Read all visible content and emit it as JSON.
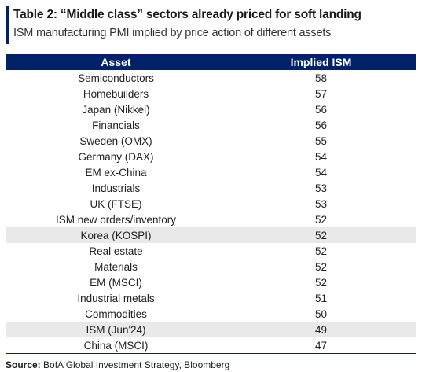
{
  "title": "Table 2: “Middle class” sectors already priced for soft landing",
  "subtitle": "ISM manufacturing PMI implied by price action of different assets",
  "colors": {
    "header_bg": "#012169",
    "shaded_row": "#e9e9e9"
  },
  "table": {
    "headers": [
      "Asset",
      "Implied ISM"
    ],
    "rows": [
      {
        "asset": "Semiconductors",
        "ism": "58"
      },
      {
        "asset": "Homebuilders",
        "ism": "57"
      },
      {
        "asset": "Japan (Nikkei)",
        "ism": "56"
      },
      {
        "asset": "Financials",
        "ism": "56"
      },
      {
        "asset": "Sweden (OMX)",
        "ism": "55"
      },
      {
        "asset": "Germany (DAX)",
        "ism": "54"
      },
      {
        "asset": "EM ex-China",
        "ism": "54"
      },
      {
        "asset": "Industrials",
        "ism": "53"
      },
      {
        "asset": "UK (FTSE)",
        "ism": "53"
      },
      {
        "asset": "ISM new orders/inventory",
        "ism": "52"
      },
      {
        "asset": "Korea (KOSPI)",
        "ism": "52",
        "highlighted": true
      },
      {
        "asset": "Real estate",
        "ism": "52"
      },
      {
        "asset": "Materials",
        "ism": "52"
      },
      {
        "asset": "EM (MSCI)",
        "ism": "52"
      },
      {
        "asset": "Industrial metals",
        "ism": "51"
      },
      {
        "asset": "Commodities",
        "ism": "50"
      },
      {
        "asset": "ISM (Jun'24)",
        "ism": "49",
        "highlighted": true
      },
      {
        "asset": "China (MSCI)",
        "ism": "47"
      }
    ]
  },
  "source": {
    "label": "Source:",
    "text": "BofA Global Investment Strategy, Bloomberg"
  }
}
